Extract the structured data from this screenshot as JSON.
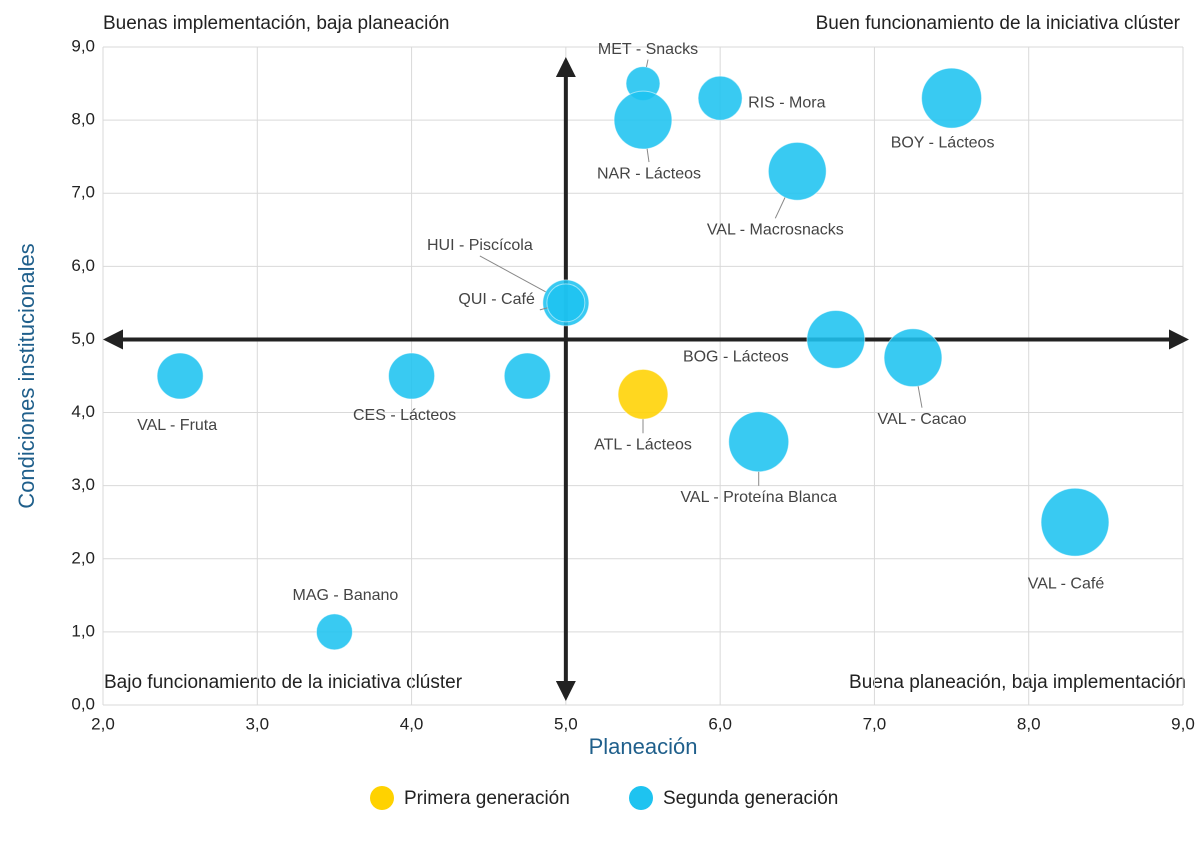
{
  "chart_data": {
    "type": "scatter",
    "xlabel": "Planeación",
    "ylabel": "Condiciones institucionales",
    "xlim": [
      2,
      9
    ],
    "ylim": [
      0,
      9
    ],
    "xticks": [
      {
        "value": 2,
        "label": "2,0"
      },
      {
        "value": 3,
        "label": "3,0"
      },
      {
        "value": 4,
        "label": "4,0"
      },
      {
        "value": 5,
        "label": "5,0"
      },
      {
        "value": 6,
        "label": "6,0"
      },
      {
        "value": 7,
        "label": "7,0"
      },
      {
        "value": 8,
        "label": "8,0"
      },
      {
        "value": 9,
        "label": "9,0"
      }
    ],
    "yticks": [
      {
        "value": 0,
        "label": "0,0"
      },
      {
        "value": 1,
        "label": "1,0"
      },
      {
        "value": 2,
        "label": "2,0"
      },
      {
        "value": 3,
        "label": "3,0"
      },
      {
        "value": 4,
        "label": "4,0"
      },
      {
        "value": 5,
        "label": "5,0"
      },
      {
        "value": 6,
        "label": "6,0"
      },
      {
        "value": 7,
        "label": "7,0"
      },
      {
        "value": 8,
        "label": "8,0"
      },
      {
        "value": 9,
        "label": "9,0"
      }
    ],
    "grid": true,
    "legend": "bottom",
    "quadrant_lines": {
      "x": 5,
      "y": 5
    },
    "annotations": {
      "top_left": "Buenas implementación, baja planeación",
      "top_right": "Buen funcionamiento de la iniciativa clúster",
      "bottom_left": "Bajo funcionamiento de la iniciativa clúster",
      "bottom_right": "Buena planeación, baja implementación"
    },
    "series": [
      {
        "name": "Primera generación",
        "color": "#ffd200",
        "x": [
          5.5
        ],
        "values": [
          4.25
        ],
        "sizes": [
          69
        ],
        "labels": [
          "ATL - Lácteos"
        ]
      },
      {
        "name": "Segunda generación",
        "color": "#1ec3f0",
        "x": [
          5.5,
          6.0,
          5.5,
          7.5,
          6.5,
          5.0,
          5.0,
          6.75,
          7.25,
          2.5,
          4.0,
          4.75,
          6.25,
          8.3,
          3.5
        ],
        "values": [
          8.5,
          8.3,
          8.0,
          8.3,
          7.3,
          5.5,
          5.5,
          5.0,
          4.75,
          4.5,
          4.5,
          4.5,
          3.6,
          2.5,
          1.0
        ],
        "sizes": [
          32,
          54,
          93,
          100,
          93,
          59,
          40,
          93,
          93,
          59,
          59,
          59,
          100,
          128,
          36
        ],
        "labels": [
          "MET - Snacks",
          "RIS - Mora",
          "NAR - Lácteos",
          "BOY - Lácteos",
          "VAL - Macrosnacks",
          "HUI - Piscícola",
          "QUI - Café",
          "BOG - Lácteos",
          "VAL - Cacao",
          "VAL - Fruta",
          "CES - Lácteos",
          null,
          "VAL - Proteína Blanca",
          "VAL - Café",
          "MAG - Banano"
        ]
      }
    ]
  }
}
